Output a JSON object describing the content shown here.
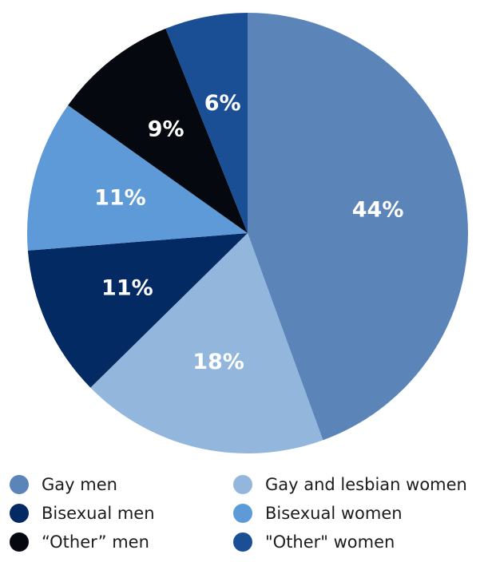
{
  "chart_data": {
    "type": "pie",
    "title": "",
    "slices": [
      {
        "label": "Gay men",
        "value": 44,
        "display": "44%",
        "color": "#5b84b8"
      },
      {
        "label": "Gay and lesbian women",
        "value": 18,
        "display": "18%",
        "color": "#93b7dc"
      },
      {
        "label": "Bisexual men",
        "value": 11,
        "display": "11%",
        "color": "#042a63"
      },
      {
        "label": "Bisexual women",
        "value": 11,
        "display": "11%",
        "color": "#5d9ad7"
      },
      {
        "label": "“Other” men",
        "value": 9,
        "display": "9%",
        "color": "#05080f"
      },
      {
        "label": "“Other” women",
        "value": 6,
        "display": "6%",
        "color": "#1b4f95"
      }
    ],
    "start_angle": "12 o'clock",
    "direction": "clockwise",
    "legend_position": "bottom"
  },
  "legend": [
    {
      "label": "Gay men",
      "color": "#5b84b8"
    },
    {
      "label": "Gay and lesbian women",
      "color": "#93b7dc"
    },
    {
      "label": "Bisexual men",
      "color": "#042a63"
    },
    {
      "label": "Bisexual women",
      "color": "#5d9ad7"
    },
    {
      "label": "“Other” men",
      "color": "#05080f"
    },
    {
      "label": "\"Other\" women",
      "color": "#1b4f95"
    }
  ]
}
